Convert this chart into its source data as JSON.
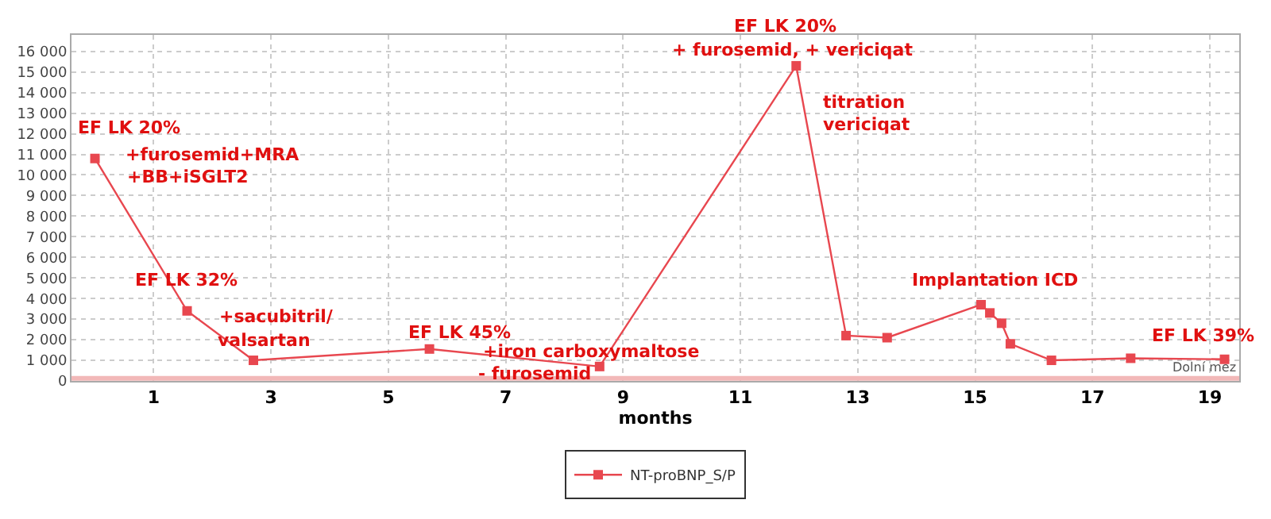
{
  "chart_data": {
    "type": "line",
    "xlabel": "months",
    "x": [
      0.0,
      1.57,
      2.7,
      5.7,
      8.6,
      11.95,
      12.8,
      13.5,
      15.1,
      15.25,
      15.45,
      15.6,
      16.3,
      17.65,
      19.25
    ],
    "series": [
      {
        "name": "NT-proBNP_S/P",
        "color": "#e8474f",
        "values": [
          10800,
          3400,
          1000,
          1550,
          700,
          15300,
          2200,
          2100,
          3700,
          3300,
          2800,
          1800,
          1000,
          1100,
          1050
        ]
      }
    ],
    "xlim": [
      -0.4,
      19.5
    ],
    "xticks": [
      1,
      3,
      5,
      7,
      9,
      11,
      13,
      15,
      17,
      19
    ],
    "ylim": [
      0,
      16800
    ],
    "yticks": [
      {
        "value": 0,
        "label": "0"
      },
      {
        "value": 1000,
        "label": "1 000"
      },
      {
        "value": 2000,
        "label": "2 000"
      },
      {
        "value": 3000,
        "label": "3 000"
      },
      {
        "value": 4000,
        "label": "4 000"
      },
      {
        "value": 5000,
        "label": "5 000"
      },
      {
        "value": 6000,
        "label": "6 000"
      },
      {
        "value": 7000,
        "label": "7 000"
      },
      {
        "value": 8000,
        "label": "8 000"
      },
      {
        "value": 9000,
        "label": "9 000"
      },
      {
        "value": 10000,
        "label": "10 000"
      },
      {
        "value": 11000,
        "label": "11 000"
      },
      {
        "value": 12000,
        "label": "12 000"
      },
      {
        "value": 13000,
        "label": "13 000"
      },
      {
        "value": 14000,
        "label": "14 000"
      },
      {
        "value": 15000,
        "label": "15 000"
      },
      {
        "value": 16000,
        "label": "16 000"
      }
    ],
    "ref_lines": [
      {
        "axis": "y",
        "value": 125,
        "label": "Dolní mez",
        "color": "#f2b8b8"
      }
    ],
    "annotations": [
      "EF LK 20%",
      "+furosemid+MRA",
      "+BB+iSGLT2",
      "EF LK 32%",
      "+sacubitril/",
      "valsartan",
      "EF LK 45%",
      "+iron carboxymaltose",
      "- furosemid",
      "EF LK 20%",
      "+ furosemid, + vericiqat",
      "titration",
      "vericiqat",
      "Implantation ICD",
      "EF LK 39%"
    ],
    "grid": true,
    "legend": "bottom",
    "marker": "square",
    "line_style": "solid"
  }
}
